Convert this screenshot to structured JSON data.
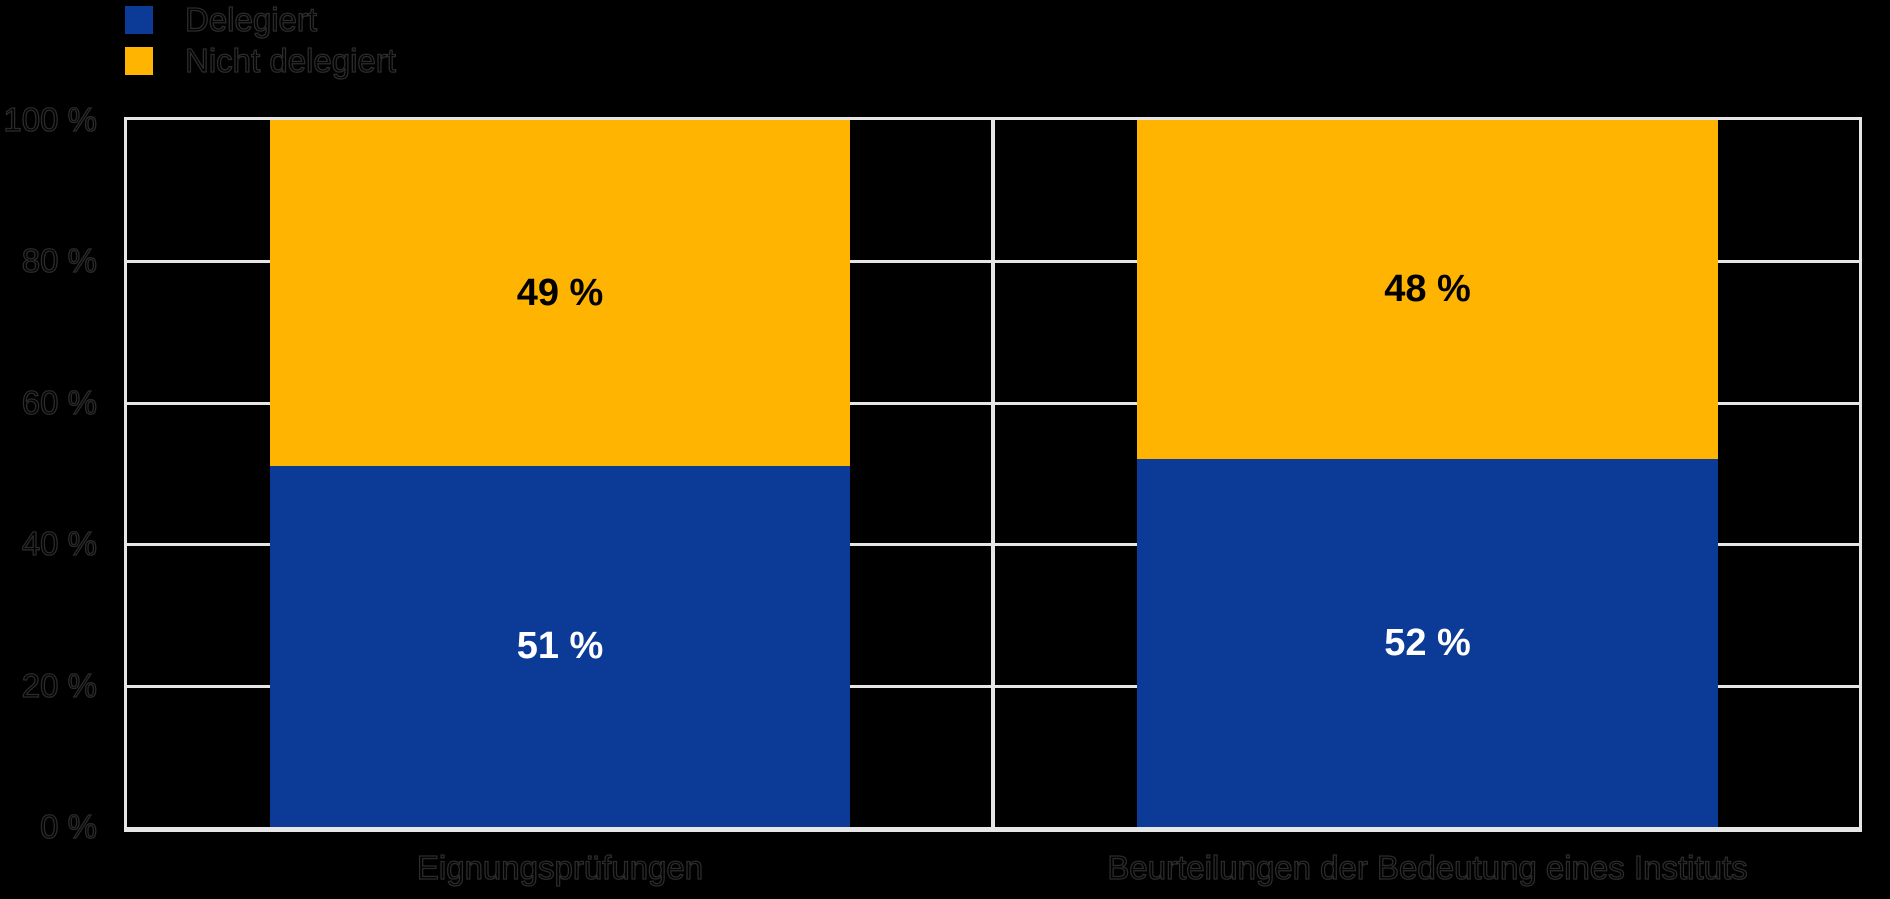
{
  "page": {
    "background": "#000000"
  },
  "legend": {
    "items": [
      {
        "label": "Delegiert",
        "color": "#0b3b96"
      },
      {
        "label": "Nicht delegiert",
        "color": "#ffb402"
      }
    ]
  },
  "chart_data": {
    "type": "bar",
    "stacked": true,
    "orientation": "vertical",
    "title": "",
    "xlabel": "",
    "ylabel": "",
    "ylim": [
      0,
      100
    ],
    "grid": true,
    "legend_position": "top-left",
    "categories": [
      "Eignungsprüfungen",
      "Beurteilungen der Bedeutung eines Instituts"
    ],
    "series": [
      {
        "name": "Delegiert",
        "color": "#0b3b96",
        "values": [
          51,
          52
        ],
        "value_labels": [
          "51 %",
          "52 %"
        ],
        "label_color": "#ffffff"
      },
      {
        "name": "Nicht delegiert",
        "color": "#ffb402",
        "values": [
          49,
          48
        ],
        "value_labels": [
          "49 %",
          "48 %"
        ],
        "label_color": "#000000"
      }
    ],
    "y_ticks": [
      {
        "value": 100,
        "label": "100 %"
      },
      {
        "value": 80,
        "label": "80 %"
      },
      {
        "value": 60,
        "label": "60 %"
      },
      {
        "value": 40,
        "label": "40 %"
      },
      {
        "value": 20,
        "label": "20 %"
      },
      {
        "value": 0,
        "label": "0 %"
      }
    ],
    "colors": {
      "background": "#000000",
      "gridline": "#e6e6e6",
      "axis_text": "#000000"
    }
  }
}
